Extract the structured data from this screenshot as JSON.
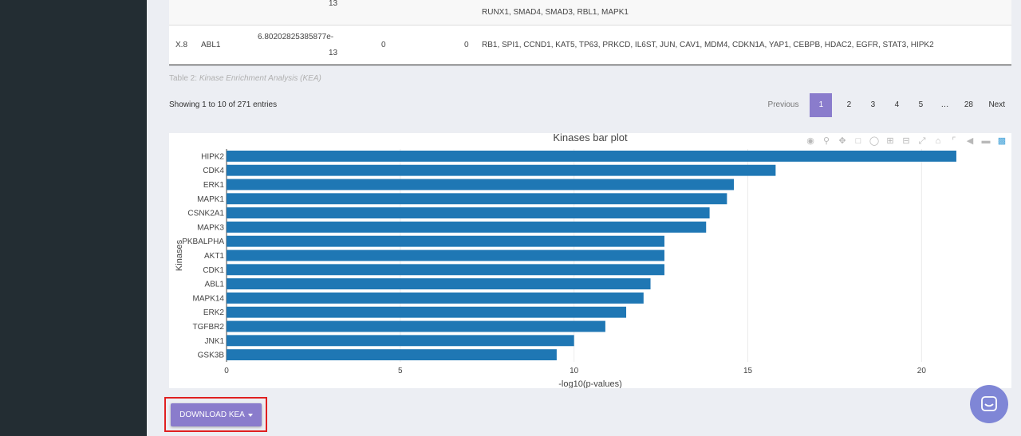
{
  "table": {
    "prev_row": {
      "pvalue_tail": "13",
      "genes_tail": "RUNX1, SMAD4, SMAD3, RBL1, MAPK1"
    },
    "last_row": {
      "index": "X.8",
      "kinase": "ABL1",
      "pvalue_line1": "6.80202825385877e-",
      "pvalue_line2": "13",
      "col3": "0",
      "col4": "0",
      "genes": "RB1, SPI1, CCND1, KAT5, TP63, PRKCD, IL6ST, JUN, CAV1, MDM4, CDKN1A, YAP1, CEBPB, HDAC2, EGFR, STAT3, HIPK2"
    },
    "caption_prefix": "Table 2:",
    "caption_title": "Kinase Enrichment Analysis (KEA)",
    "info": "Showing 1 to 10 of 271 entries"
  },
  "pagination": {
    "previous": "Previous",
    "pages": [
      "1",
      "2",
      "3",
      "4",
      "5",
      "…",
      "28"
    ],
    "active": "1",
    "next": "Next"
  },
  "modebar_icons": [
    "camera-icon",
    "zoom-icon",
    "pan-icon",
    "box-select-icon",
    "lasso-icon",
    "zoom-in-icon",
    "zoom-out-icon",
    "autoscale-icon",
    "home-icon",
    "spike-lines-icon",
    "hover-closest-icon",
    "hover-compare-icon",
    "plotly-logo-icon"
  ],
  "download": {
    "label": "DOWNLOAD KEA"
  },
  "colors": {
    "bar": "#1f77b4",
    "accent": "#8a7ccc",
    "highlight": "#e02020",
    "sidebar": "#232d33"
  },
  "chart_data": {
    "type": "bar",
    "orientation": "horizontal",
    "title": "Kinases bar plot",
    "xlabel": "-log10(p-values)",
    "ylabel": "Kinases",
    "categories": [
      "HIPK2",
      "CDK4",
      "ERK1",
      "MAPK1",
      "CSNK2A1",
      "MAPK3",
      "PKBALPHA",
      "AKT1",
      "CDK1",
      "ABL1",
      "MAPK14",
      "ERK2",
      "TGFBR2",
      "JNK1",
      "GSK3B"
    ],
    "values": [
      21.0,
      15.8,
      14.6,
      14.4,
      13.9,
      13.8,
      12.6,
      12.6,
      12.6,
      12.2,
      12.0,
      11.5,
      10.9,
      10.0,
      9.5
    ],
    "xlim": [
      0,
      21.3
    ],
    "xticks": [
      "0",
      "5",
      "10",
      "15",
      "20"
    ],
    "grid": true
  }
}
